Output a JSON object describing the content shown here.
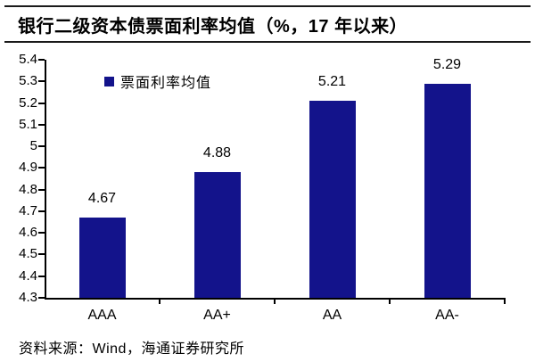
{
  "header": {
    "title": "银行二级资本债票面利率均值（%，17 年以来）"
  },
  "chart_data": {
    "type": "bar",
    "title": "银行二级资本债票面利率均值（%，17 年以来）",
    "categories": [
      "AAA",
      "AA+",
      "AA",
      "AA-"
    ],
    "values": [
      4.67,
      4.88,
      5.21,
      5.29
    ],
    "value_labels": [
      "4.67",
      "4.88",
      "5.21",
      "5.29"
    ],
    "series_name": "票面利率均值",
    "xlabel": "",
    "ylabel": "",
    "ylim": [
      4.3,
      5.4
    ],
    "ytick_step": 0.1,
    "ytick_labels": [
      "4.3",
      "4.4",
      "4.5",
      "4.6",
      "4.7",
      "4.8",
      "4.9",
      "5",
      "5.1",
      "5.2",
      "5.3",
      "5.4"
    ],
    "grid": false,
    "legend_position": "top-left-inside",
    "bar_color": "#13138B",
    "axis_color": "#000000",
    "text_color": "#000000"
  },
  "legend": {
    "label": "票面利率均值",
    "swatch_color": "#13138B"
  },
  "footer": {
    "source": "资料来源：Wind，海通证券研究所"
  }
}
